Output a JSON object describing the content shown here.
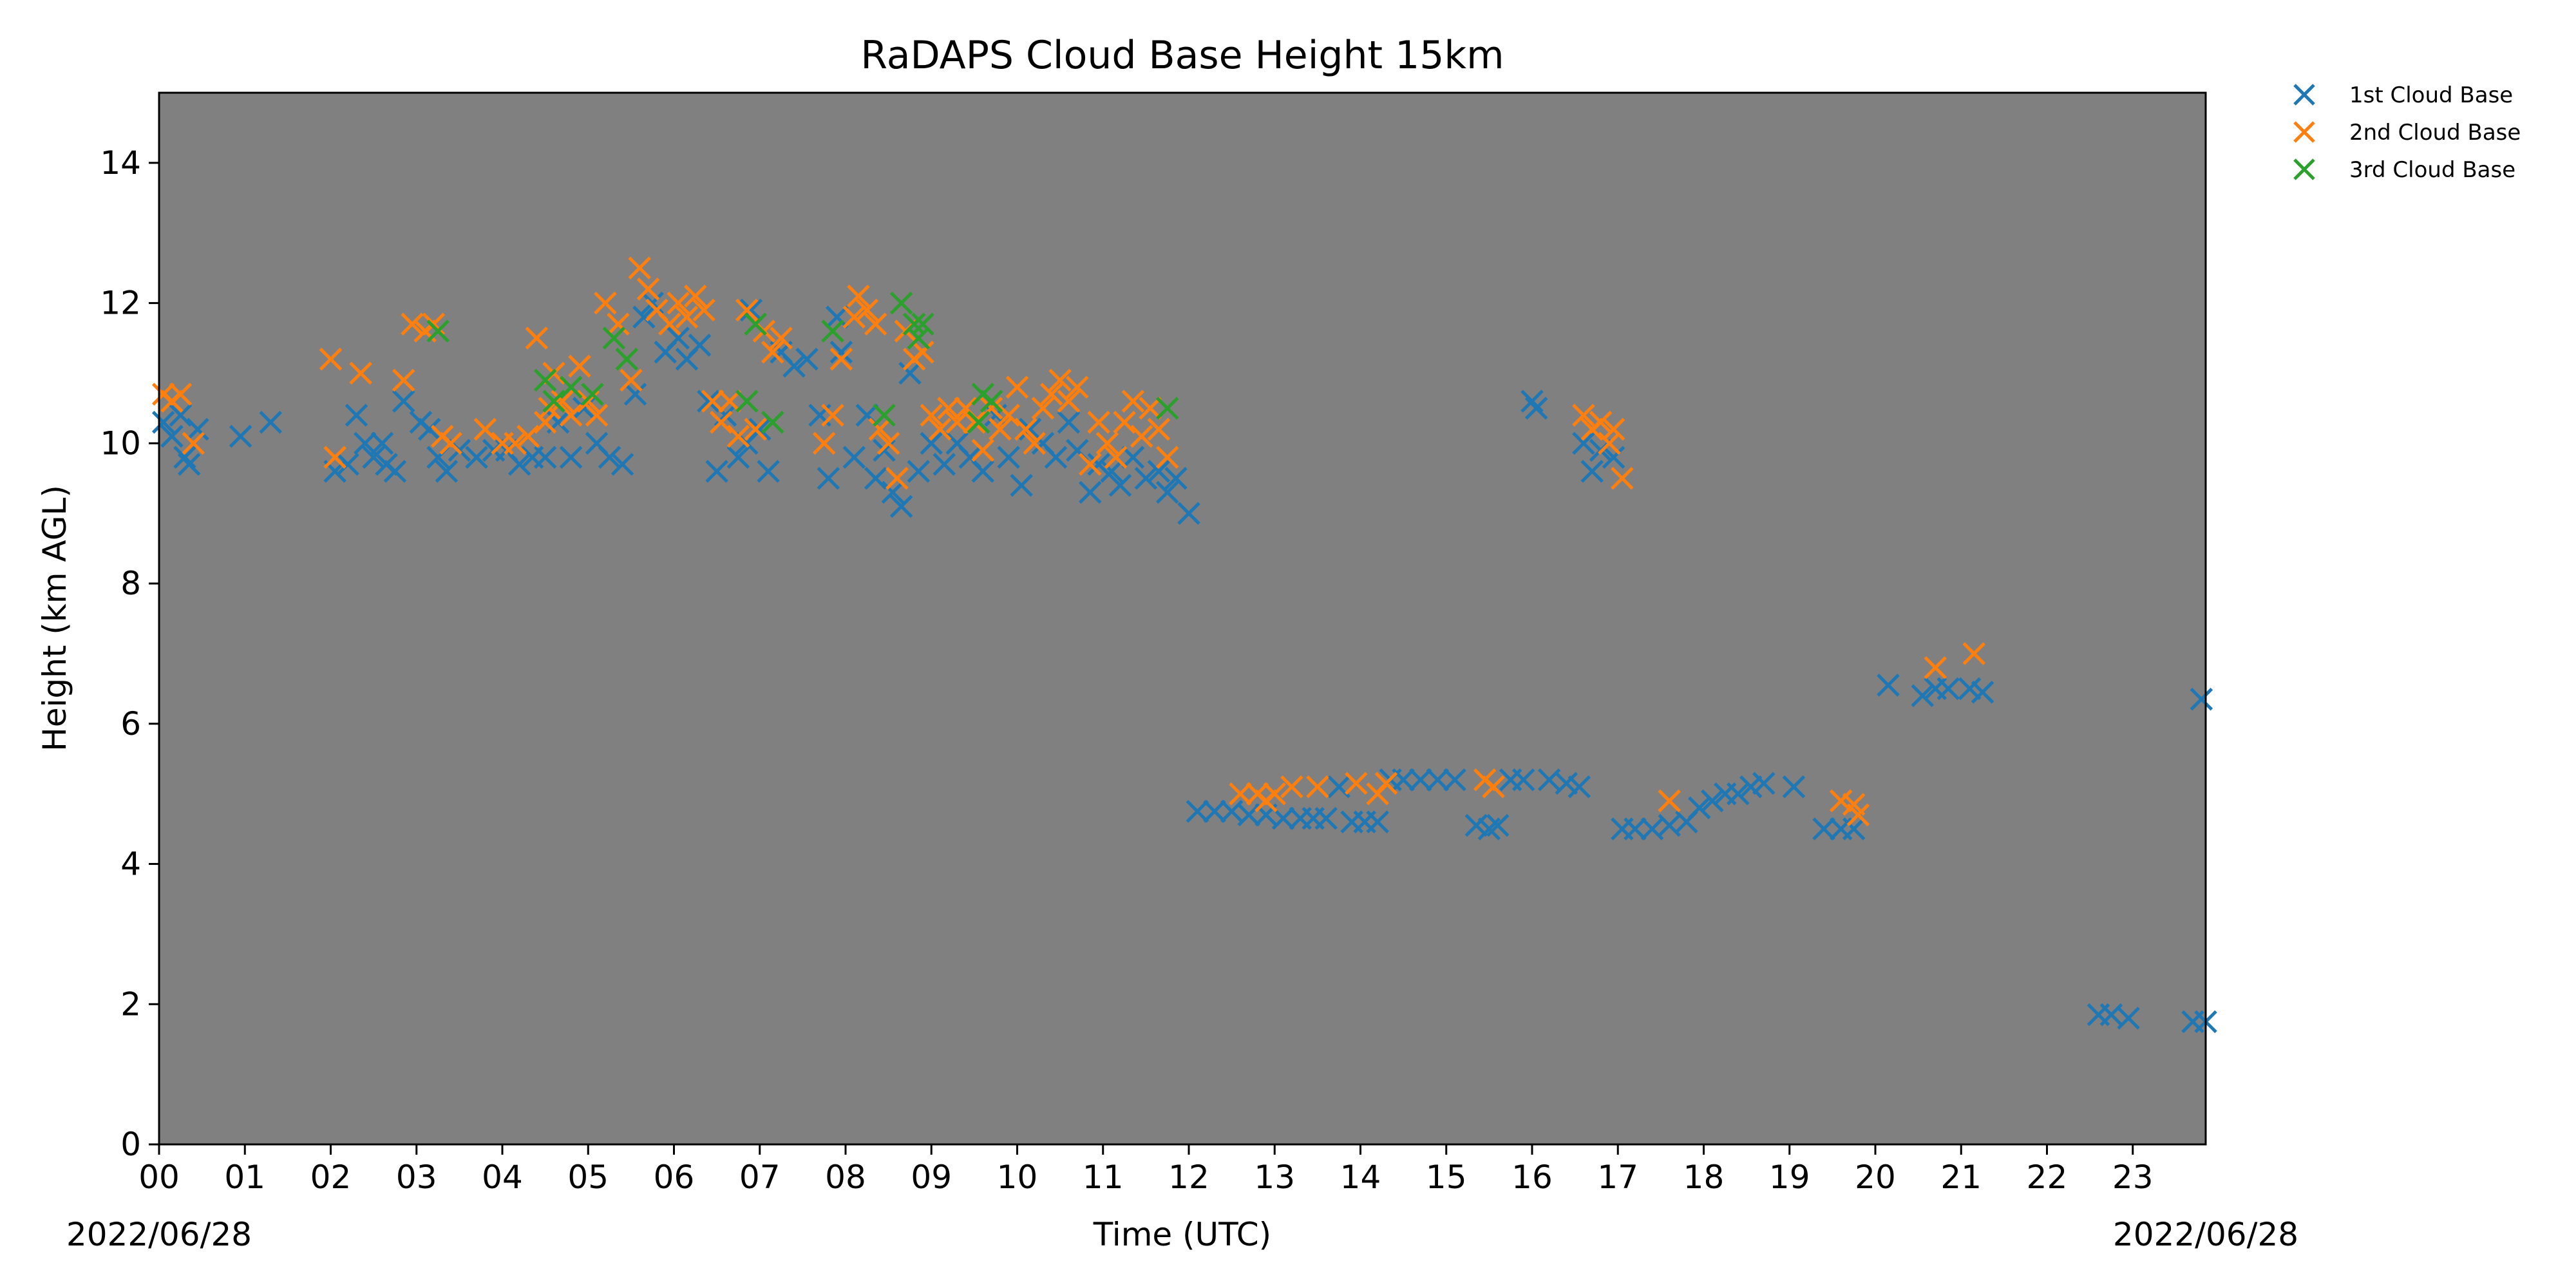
{
  "chart_data": {
    "type": "scatter",
    "title": "RaDAPS Cloud Base Height 15km",
    "xlabel": "Time (UTC)",
    "ylabel": "Height (km AGL)",
    "xlim": [
      0,
      23.85
    ],
    "ylim": [
      0,
      15
    ],
    "xticks": [
      "00",
      "01",
      "02",
      "03",
      "04",
      "05",
      "06",
      "07",
      "08",
      "09",
      "10",
      "11",
      "12",
      "13",
      "14",
      "15",
      "16",
      "17",
      "18",
      "19",
      "20",
      "21",
      "22",
      "23"
    ],
    "yticks": [
      0,
      2,
      4,
      6,
      8,
      10,
      12,
      14
    ],
    "date_left": "2022/06/28",
    "date_right": "2022/06/28",
    "background": "#808080",
    "marker": "x",
    "grid": false,
    "legend_position": "outside-top-right",
    "series": [
      {
        "name": "1st Cloud Base",
        "color": "#1f77b4",
        "points": [
          [
            0.05,
            10.3
          ],
          [
            0.15,
            10.1
          ],
          [
            0.25,
            10.4
          ],
          [
            0.3,
            9.8
          ],
          [
            0.35,
            9.7
          ],
          [
            0.45,
            10.2
          ],
          [
            0.95,
            10.1
          ],
          [
            1.3,
            10.3
          ],
          [
            2.05,
            9.6
          ],
          [
            2.2,
            9.7
          ],
          [
            2.3,
            10.4
          ],
          [
            2.4,
            10.0
          ],
          [
            2.5,
            9.8
          ],
          [
            2.6,
            10.0
          ],
          [
            2.65,
            9.7
          ],
          [
            2.75,
            9.6
          ],
          [
            2.85,
            10.6
          ],
          [
            3.05,
            10.3
          ],
          [
            3.15,
            10.2
          ],
          [
            3.25,
            9.8
          ],
          [
            3.35,
            9.6
          ],
          [
            3.5,
            9.9
          ],
          [
            3.7,
            9.8
          ],
          [
            3.9,
            9.9
          ],
          [
            4.05,
            9.9
          ],
          [
            4.2,
            9.7
          ],
          [
            4.35,
            9.8
          ],
          [
            4.5,
            9.8
          ],
          [
            4.65,
            10.3
          ],
          [
            4.8,
            9.8
          ],
          [
            4.95,
            10.5
          ],
          [
            5.1,
            10.0
          ],
          [
            5.25,
            9.8
          ],
          [
            5.4,
            9.7
          ],
          [
            5.55,
            10.7
          ],
          [
            5.65,
            11.8
          ],
          [
            5.75,
            12.0
          ],
          [
            5.9,
            11.3
          ],
          [
            6.05,
            11.5
          ],
          [
            6.15,
            11.2
          ],
          [
            6.3,
            11.4
          ],
          [
            6.4,
            10.6
          ],
          [
            6.5,
            9.6
          ],
          [
            6.6,
            10.4
          ],
          [
            6.75,
            9.8
          ],
          [
            6.85,
            10.0
          ],
          [
            6.9,
            11.9
          ],
          [
            7.0,
            10.2
          ],
          [
            7.1,
            9.6
          ],
          [
            7.25,
            11.3
          ],
          [
            7.4,
            11.1
          ],
          [
            7.55,
            11.2
          ],
          [
            7.7,
            10.4
          ],
          [
            7.8,
            9.5
          ],
          [
            7.9,
            11.8
          ],
          [
            7.95,
            11.3
          ],
          [
            8.1,
            9.8
          ],
          [
            8.25,
            10.4
          ],
          [
            8.35,
            9.5
          ],
          [
            8.45,
            9.9
          ],
          [
            8.55,
            9.3
          ],
          [
            8.65,
            9.1
          ],
          [
            8.75,
            11.0
          ],
          [
            8.85,
            9.6
          ],
          [
            9.0,
            10.0
          ],
          [
            9.15,
            9.7
          ],
          [
            9.3,
            10.0
          ],
          [
            9.45,
            9.8
          ],
          [
            9.6,
            9.6
          ],
          [
            9.75,
            10.4
          ],
          [
            9.9,
            9.8
          ],
          [
            10.05,
            9.4
          ],
          [
            10.15,
            10.2
          ],
          [
            10.3,
            10.0
          ],
          [
            10.45,
            9.8
          ],
          [
            10.6,
            10.3
          ],
          [
            10.7,
            9.9
          ],
          [
            10.85,
            9.3
          ],
          [
            10.95,
            9.7
          ],
          [
            11.1,
            9.6
          ],
          [
            11.2,
            9.4
          ],
          [
            11.35,
            9.8
          ],
          [
            11.5,
            9.5
          ],
          [
            11.65,
            9.6
          ],
          [
            11.75,
            9.3
          ],
          [
            11.85,
            9.5
          ],
          [
            12.0,
            9.0
          ],
          [
            12.1,
            4.75
          ],
          [
            12.3,
            4.75
          ],
          [
            12.5,
            4.75
          ],
          [
            12.7,
            4.7
          ],
          [
            12.9,
            4.7
          ],
          [
            13.1,
            4.65
          ],
          [
            13.3,
            4.65
          ],
          [
            13.45,
            4.65
          ],
          [
            13.6,
            4.65
          ],
          [
            13.75,
            5.1
          ],
          [
            13.9,
            4.6
          ],
          [
            14.05,
            4.6
          ],
          [
            14.2,
            4.6
          ],
          [
            14.35,
            5.2
          ],
          [
            14.5,
            5.2
          ],
          [
            14.7,
            5.2
          ],
          [
            14.9,
            5.2
          ],
          [
            15.1,
            5.2
          ],
          [
            15.35,
            4.55
          ],
          [
            15.5,
            4.5
          ],
          [
            15.6,
            4.55
          ],
          [
            15.75,
            5.2
          ],
          [
            15.9,
            5.2
          ],
          [
            16.0,
            10.6
          ],
          [
            16.05,
            10.5
          ],
          [
            16.2,
            5.2
          ],
          [
            16.4,
            5.15
          ],
          [
            16.55,
            5.1
          ],
          [
            16.6,
            10.0
          ],
          [
            16.7,
            9.6
          ],
          [
            16.8,
            9.9
          ],
          [
            16.95,
            9.8
          ],
          [
            17.05,
            4.5
          ],
          [
            17.2,
            4.5
          ],
          [
            17.4,
            4.5
          ],
          [
            17.6,
            4.55
          ],
          [
            17.8,
            4.6
          ],
          [
            17.95,
            4.8
          ],
          [
            18.1,
            4.9
          ],
          [
            18.25,
            5.0
          ],
          [
            18.4,
            5.0
          ],
          [
            18.55,
            5.1
          ],
          [
            18.7,
            5.15
          ],
          [
            19.05,
            5.1
          ],
          [
            19.4,
            4.5
          ],
          [
            19.6,
            4.5
          ],
          [
            19.75,
            4.5
          ],
          [
            20.15,
            6.55
          ],
          [
            20.55,
            6.4
          ],
          [
            20.7,
            6.5
          ],
          [
            20.85,
            6.5
          ],
          [
            21.1,
            6.5
          ],
          [
            21.25,
            6.45
          ],
          [
            22.6,
            1.85
          ],
          [
            22.75,
            1.85
          ],
          [
            22.95,
            1.8
          ],
          [
            23.7,
            1.75
          ],
          [
            23.85,
            1.75
          ],
          [
            23.8,
            6.35
          ]
        ]
      },
      {
        "name": "2nd Cloud Base",
        "color": "#ff7f0e",
        "points": [
          [
            0.05,
            10.7
          ],
          [
            0.15,
            10.6
          ],
          [
            0.25,
            10.7
          ],
          [
            0.4,
            10.0
          ],
          [
            2.0,
            11.2
          ],
          [
            2.05,
            9.8
          ],
          [
            2.35,
            11.0
          ],
          [
            2.85,
            10.9
          ],
          [
            2.95,
            11.7
          ],
          [
            3.1,
            11.6
          ],
          [
            3.2,
            11.7
          ],
          [
            3.3,
            10.1
          ],
          [
            3.4,
            10.0
          ],
          [
            3.8,
            10.2
          ],
          [
            4.0,
            10.0
          ],
          [
            4.15,
            10.0
          ],
          [
            4.3,
            10.1
          ],
          [
            4.4,
            11.5
          ],
          [
            4.5,
            10.3
          ],
          [
            4.55,
            10.5
          ],
          [
            4.6,
            11.0
          ],
          [
            4.7,
            10.6
          ],
          [
            4.8,
            10.4
          ],
          [
            4.9,
            11.1
          ],
          [
            5.0,
            10.6
          ],
          [
            5.1,
            10.4
          ],
          [
            5.2,
            12.0
          ],
          [
            5.35,
            11.7
          ],
          [
            5.5,
            10.9
          ],
          [
            5.6,
            12.5
          ],
          [
            5.7,
            12.2
          ],
          [
            5.8,
            11.9
          ],
          [
            5.95,
            11.7
          ],
          [
            6.05,
            12.0
          ],
          [
            6.15,
            11.8
          ],
          [
            6.25,
            12.1
          ],
          [
            6.35,
            11.9
          ],
          [
            6.45,
            10.6
          ],
          [
            6.55,
            10.3
          ],
          [
            6.65,
            10.6
          ],
          [
            6.75,
            10.1
          ],
          [
            6.85,
            11.9
          ],
          [
            6.95,
            10.2
          ],
          [
            7.05,
            11.6
          ],
          [
            7.15,
            11.3
          ],
          [
            7.25,
            11.5
          ],
          [
            7.75,
            10.0
          ],
          [
            7.85,
            10.4
          ],
          [
            7.95,
            11.2
          ],
          [
            8.1,
            11.8
          ],
          [
            8.15,
            12.1
          ],
          [
            8.25,
            11.9
          ],
          [
            8.35,
            11.7
          ],
          [
            8.4,
            10.2
          ],
          [
            8.5,
            10.0
          ],
          [
            8.6,
            9.5
          ],
          [
            8.7,
            11.6
          ],
          [
            8.8,
            11.2
          ],
          [
            8.9,
            11.3
          ],
          [
            9.0,
            10.4
          ],
          [
            9.1,
            10.2
          ],
          [
            9.2,
            10.5
          ],
          [
            9.3,
            10.3
          ],
          [
            9.4,
            10.5
          ],
          [
            9.5,
            10.3
          ],
          [
            9.6,
            9.9
          ],
          [
            9.7,
            10.5
          ],
          [
            9.8,
            10.2
          ],
          [
            9.9,
            10.4
          ],
          [
            10.0,
            10.8
          ],
          [
            10.1,
            10.2
          ],
          [
            10.2,
            10.0
          ],
          [
            10.3,
            10.5
          ],
          [
            10.4,
            10.7
          ],
          [
            10.5,
            10.9
          ],
          [
            10.6,
            10.6
          ],
          [
            10.7,
            10.8
          ],
          [
            10.85,
            9.7
          ],
          [
            10.95,
            10.3
          ],
          [
            11.05,
            10.0
          ],
          [
            11.15,
            9.8
          ],
          [
            11.25,
            10.3
          ],
          [
            11.35,
            10.6
          ],
          [
            11.45,
            10.1
          ],
          [
            11.55,
            10.5
          ],
          [
            11.65,
            10.2
          ],
          [
            11.75,
            9.8
          ],
          [
            12.6,
            5.0
          ],
          [
            12.8,
            5.0
          ],
          [
            12.9,
            4.9
          ],
          [
            13.0,
            5.0
          ],
          [
            13.2,
            5.1
          ],
          [
            13.5,
            5.1
          ],
          [
            13.95,
            5.15
          ],
          [
            14.2,
            5.0
          ],
          [
            14.3,
            5.15
          ],
          [
            15.45,
            5.2
          ],
          [
            15.55,
            5.1
          ],
          [
            16.6,
            10.4
          ],
          [
            16.7,
            10.2
          ],
          [
            16.8,
            10.3
          ],
          [
            16.9,
            10.0
          ],
          [
            16.95,
            10.2
          ],
          [
            17.05,
            9.5
          ],
          [
            17.6,
            4.9
          ],
          [
            19.6,
            4.9
          ],
          [
            19.75,
            4.85
          ],
          [
            19.8,
            4.7
          ],
          [
            20.7,
            6.8
          ],
          [
            21.15,
            7.0
          ]
        ]
      },
      {
        "name": "3rd Cloud Base",
        "color": "#2ca02c",
        "points": [
          [
            3.25,
            11.6
          ],
          [
            4.5,
            10.9
          ],
          [
            4.6,
            10.6
          ],
          [
            4.8,
            10.8
          ],
          [
            5.05,
            10.7
          ],
          [
            5.3,
            11.5
          ],
          [
            5.45,
            11.2
          ],
          [
            6.85,
            10.6
          ],
          [
            6.95,
            11.7
          ],
          [
            7.15,
            10.3
          ],
          [
            7.85,
            11.6
          ],
          [
            8.45,
            10.4
          ],
          [
            8.65,
            12.0
          ],
          [
            8.8,
            11.7
          ],
          [
            8.85,
            11.5
          ],
          [
            8.9,
            11.7
          ],
          [
            9.6,
            10.7
          ],
          [
            9.7,
            10.6
          ],
          [
            9.55,
            10.3
          ],
          [
            11.75,
            10.5
          ]
        ]
      }
    ]
  }
}
